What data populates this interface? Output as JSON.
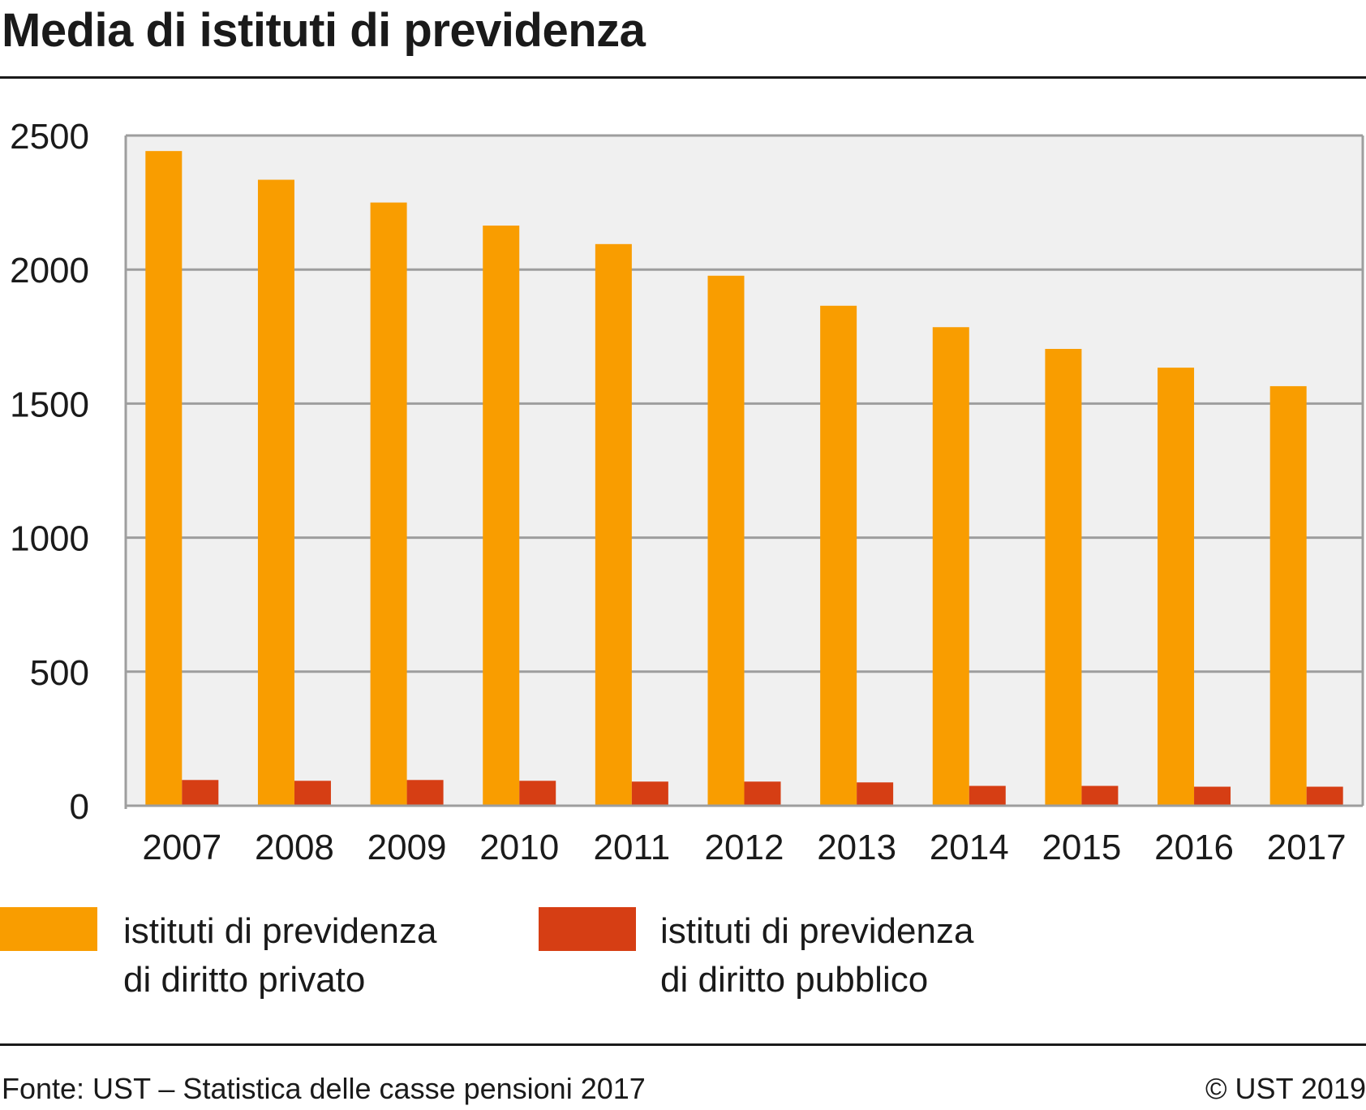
{
  "title": "Media di istituti di previdenza",
  "colors": {
    "private": "#f99d00",
    "public": "#d63e14",
    "plot_bg": "#f0f0f0",
    "grid": "#9e9e9e"
  },
  "legend": {
    "private": "istituti di previdenza di diritto privato",
    "public": "istituti di previdenza di diritto pubblico"
  },
  "footer": {
    "source": "Fonte: UST – Statistica delle casse pensioni 2017",
    "copyright": "© UST 2019"
  },
  "chart_data": {
    "type": "bar",
    "categories": [
      "2007",
      "2008",
      "2009",
      "2010",
      "2011",
      "2012",
      "2013",
      "2014",
      "2015",
      "2016",
      "2017"
    ],
    "series": [
      {
        "name": "istituti di previdenza di diritto privato",
        "values": [
          2442,
          2335,
          2250,
          2164,
          2095,
          1977,
          1865,
          1785,
          1704,
          1634,
          1565
        ]
      },
      {
        "name": "istituti di previdenza di diritto pubblico",
        "values": [
          96,
          93,
          96,
          93,
          90,
          90,
          87,
          74,
          74,
          71,
          71
        ]
      }
    ],
    "yticks": [
      "0",
      "500",
      "1000",
      "1500",
      "2000",
      "2500"
    ],
    "ylim": [
      0,
      2500
    ],
    "grid": true,
    "legend_position": "bottom"
  }
}
